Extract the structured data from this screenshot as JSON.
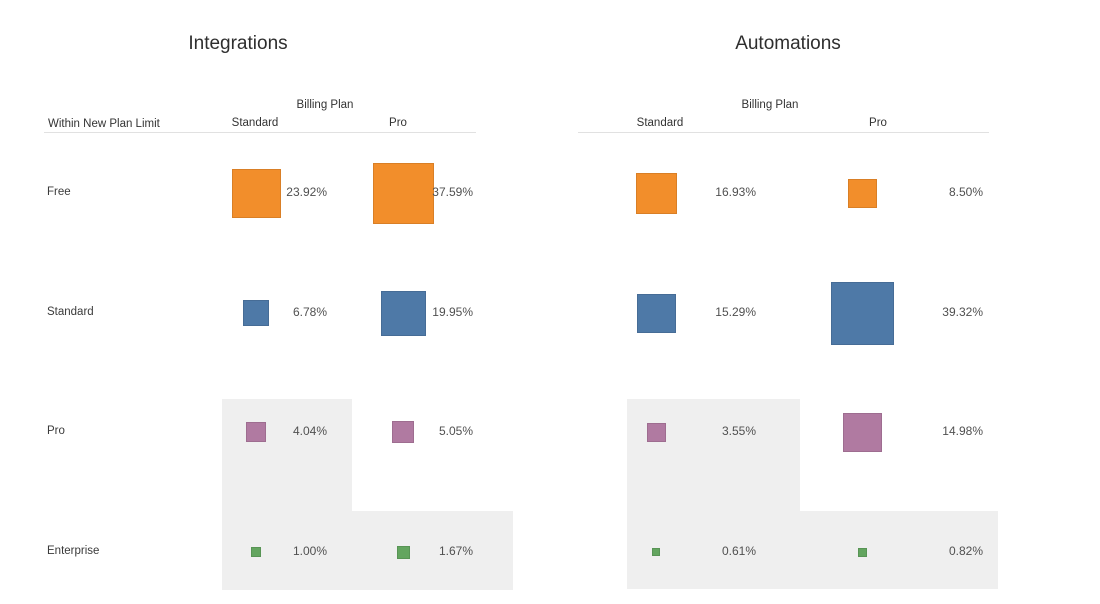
{
  "colors": {
    "row_free": "#F28E2B",
    "row_standard": "#4E79A7",
    "row_pro": "#B07AA1",
    "row_enterprise": "#63A55F",
    "highlight_band": "#EFEFEF",
    "header_rule": "#E1E1E1"
  },
  "chart_data": [
    {
      "type": "heatmap",
      "mark": "size-encoded-square",
      "title": "Integrations",
      "x_title": "Billing Plan",
      "y_title": "Within New Plan Limit",
      "x_categories": [
        "Standard",
        "Pro"
      ],
      "y_categories": [
        "Free",
        "Standard",
        "Pro",
        "Enterprise"
      ],
      "values": [
        [
          23.92,
          37.59
        ],
        [
          6.78,
          19.95
        ],
        [
          4.04,
          5.05
        ],
        [
          1.0,
          1.67
        ]
      ],
      "labels": [
        [
          "23.92%",
          "37.59%"
        ],
        [
          "6.78%",
          "19.95%"
        ],
        [
          "4.04%",
          "5.05%"
        ],
        [
          "1.00%",
          "1.67%"
        ]
      ],
      "row_colors": [
        "#F28E2B",
        "#4E79A7",
        "#B07AA1",
        "#63A55F"
      ],
      "shaded_cells": [
        [
          false,
          false
        ],
        [
          false,
          false
        ],
        [
          true,
          false
        ],
        [
          true,
          true
        ]
      ],
      "value_format": "percent",
      "size_scale": "side_px = 10 * sqrt(value_pct)",
      "legend_position": "none",
      "show_row_labels": true
    },
    {
      "type": "heatmap",
      "mark": "size-encoded-square",
      "title": "Automations",
      "x_title": "Billing Plan",
      "y_title": "Within New Plan Limit",
      "x_categories": [
        "Standard",
        "Pro"
      ],
      "y_categories": [
        "Free",
        "Standard",
        "Pro",
        "Enterprise"
      ],
      "values": [
        [
          16.93,
          8.5
        ],
        [
          15.29,
          39.32
        ],
        [
          3.55,
          14.98
        ],
        [
          0.61,
          0.82
        ]
      ],
      "labels": [
        [
          "16.93%",
          "8.50%"
        ],
        [
          "15.29%",
          "39.32%"
        ],
        [
          "3.55%",
          "14.98%"
        ],
        [
          "0.61%",
          "0.82%"
        ]
      ],
      "row_colors": [
        "#F28E2B",
        "#4E79A7",
        "#B07AA1",
        "#63A55F"
      ],
      "shaded_cells": [
        [
          false,
          false
        ],
        [
          false,
          false
        ],
        [
          true,
          false
        ],
        [
          true,
          true
        ]
      ],
      "value_format": "percent",
      "size_scale": "side_px = 10 * sqrt(value_pct)",
      "legend_position": "none",
      "show_row_labels": false
    }
  ]
}
